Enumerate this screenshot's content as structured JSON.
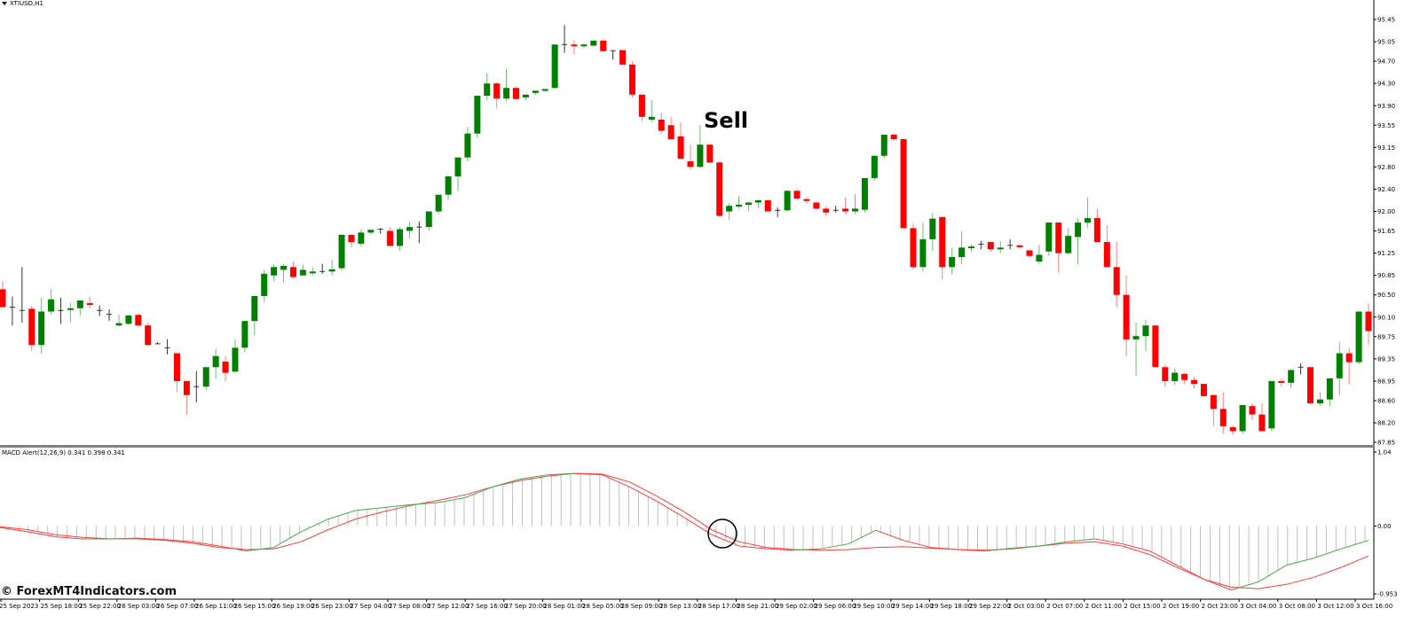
{
  "window": {
    "symbol_label": "XTIUSD,H1",
    "menu_icon": "triangle-down-icon"
  },
  "annotation": {
    "sell_label": "Sell",
    "crossover_marker": "circle"
  },
  "indicator": {
    "label": "MACD Alert(12,26,9) 0.341 0.398 0.341",
    "name": "MACD Alert",
    "params": "12,26,9",
    "values": [
      0.341,
      0.398,
      0.341
    ],
    "scale_max_label": "1.04",
    "scale_zero_label": "0.00",
    "scale_min_label": "-0.953"
  },
  "watermark": "© ForexMT4Indicators.com",
  "colors": {
    "bull": "#008000",
    "bear": "#ff0000",
    "bull_wick": "#6fbf6f",
    "bear_wick": "#ff8080",
    "macd_up": "#4aa84a",
    "macd_signal": "#ff3b3b",
    "histogram": "#c0c0c0",
    "axis": "#000000",
    "separator": "#808080"
  },
  "chart_data": [
    {
      "type": "candlestick",
      "title": "XTIUSD,H1",
      "xlabel": "",
      "ylabel": "",
      "ylim": [
        87.85,
        95.45
      ],
      "y_ticks": [
        "95.45",
        "95.05",
        "94.70",
        "94.30",
        "93.90",
        "93.55",
        "93.15",
        "92.80",
        "92.40",
        "92.00",
        "91.65",
        "91.25",
        "90.85",
        "90.50",
        "90.10",
        "89.75",
        "89.35",
        "88.95",
        "88.60",
        "88.20",
        "87.85"
      ],
      "x_ticks": [
        "25 Sep 2023",
        "25 Sep 18:00",
        "25 Sep 22:00",
        "26 Sep 03:00",
        "26 Sep 07:00",
        "26 Sep 11:00",
        "26 Sep 15:00",
        "26 Sep 19:00",
        "26 Sep 23:00",
        "27 Sep 04:00",
        "27 Sep 08:00",
        "27 Sep 12:00",
        "27 Sep 16:00",
        "27 Sep 20:00",
        "28 Sep 01:00",
        "28 Sep 05:00",
        "28 Sep 09:00",
        "28 Sep 13:00",
        "28 Sep 17:00",
        "28 Sep 21:00",
        "29 Sep 02:00",
        "29 Sep 06:00",
        "29 Sep 10:00",
        "29 Sep 14:00",
        "29 Sep 18:00",
        "29 Sep 22:00",
        "2 Oct 03:00",
        "2 Oct 07:00",
        "2 Oct 11:00",
        "2 Oct 15:00",
        "2 Oct 19:00",
        "2 Oct 23:00",
        "3 Oct 04:00",
        "3 Oct 08:00",
        "3 Oct 12:00",
        "3 Oct 16:00"
      ],
      "annotations": [
        {
          "text": "Sell",
          "near": "28 Sep 17:00"
        }
      ],
      "candles_ohlc": [
        [
          90.6,
          90.75,
          90.28,
          90.28
        ],
        [
          90.27,
          90.47,
          89.95,
          90.28
        ],
        [
          90.22,
          91.0,
          90.0,
          90.22
        ],
        [
          90.25,
          90.3,
          89.5,
          89.6
        ],
        [
          89.6,
          90.45,
          89.45,
          90.2
        ],
        [
          90.2,
          90.6,
          90.15,
          90.42
        ],
        [
          90.22,
          90.45,
          89.98,
          90.22
        ],
        [
          90.23,
          90.36,
          90.0,
          90.26
        ],
        [
          90.26,
          90.4,
          90.13,
          90.4
        ],
        [
          90.35,
          90.47,
          90.26,
          90.32
        ],
        [
          90.22,
          90.31,
          90.12,
          90.22
        ],
        [
          90.15,
          90.24,
          90.03,
          90.15
        ],
        [
          89.95,
          90.14,
          89.93,
          89.99
        ],
        [
          89.98,
          90.14,
          89.97,
          90.13
        ],
        [
          90.14,
          90.17,
          89.95,
          89.95
        ],
        [
          89.95,
          90.0,
          89.6,
          89.6
        ],
        [
          89.62,
          89.65,
          89.62,
          89.62
        ],
        [
          89.55,
          89.7,
          89.43,
          89.55
        ],
        [
          89.45,
          89.45,
          88.75,
          88.95
        ],
        [
          88.95,
          88.95,
          88.35,
          88.7
        ],
        [
          88.85,
          89.13,
          88.57,
          88.85
        ],
        [
          88.85,
          89.2,
          88.8,
          89.2
        ],
        [
          89.2,
          89.53,
          88.99,
          89.4
        ],
        [
          89.3,
          89.4,
          88.95,
          89.1
        ],
        [
          89.12,
          89.7,
          89.1,
          89.55
        ],
        [
          89.55,
          89.88,
          89.47,
          90.03
        ],
        [
          90.03,
          90.4,
          89.77,
          90.48
        ],
        [
          90.48,
          90.95,
          90.37,
          90.88
        ],
        [
          90.85,
          91.05,
          90.75,
          91.0
        ],
        [
          90.95,
          91.05,
          90.73,
          91.02
        ],
        [
          91.0,
          91.1,
          90.8,
          90.82
        ],
        [
          90.85,
          91.05,
          90.85,
          90.95
        ],
        [
          90.9,
          91.0,
          90.85,
          90.92
        ],
        [
          90.92,
          91.06,
          90.88,
          90.92
        ],
        [
          90.92,
          91.13,
          90.85,
          90.96
        ],
        [
          90.98,
          91.58,
          90.93,
          91.58
        ],
        [
          91.58,
          91.58,
          91.35,
          91.45
        ],
        [
          91.42,
          91.68,
          91.37,
          91.62
        ],
        [
          91.62,
          91.67,
          91.59,
          91.67
        ],
        [
          91.68,
          91.7,
          91.6,
          91.67
        ],
        [
          91.65,
          91.72,
          91.38,
          91.38
        ],
        [
          91.38,
          91.72,
          91.3,
          91.68
        ],
        [
          91.65,
          91.82,
          91.52,
          91.72
        ],
        [
          91.72,
          91.82,
          91.43,
          91.72
        ],
        [
          91.72,
          91.94,
          91.65,
          92.0
        ],
        [
          92.0,
          92.25,
          91.95,
          92.3
        ],
        [
          92.3,
          92.65,
          92.2,
          92.63
        ],
        [
          92.63,
          92.85,
          92.37,
          92.97
        ],
        [
          92.97,
          93.52,
          92.9,
          93.4
        ],
        [
          93.4,
          93.85,
          93.32,
          94.08
        ],
        [
          94.08,
          94.49,
          94.0,
          94.3
        ],
        [
          94.3,
          94.32,
          93.85,
          94.03
        ],
        [
          94.03,
          94.56,
          93.98,
          94.22
        ],
        [
          94.22,
          94.25,
          94.0,
          94.02
        ],
        [
          94.05,
          94.1,
          94.0,
          94.1
        ],
        [
          94.13,
          94.17,
          94.09,
          94.17
        ],
        [
          94.18,
          94.2,
          94.15,
          94.2
        ],
        [
          94.22,
          95.0,
          94.2,
          95.0
        ],
        [
          95.0,
          95.35,
          94.85,
          95.0
        ],
        [
          95.0,
          95.08,
          94.82,
          94.98
        ],
        [
          94.98,
          95.02,
          94.93,
          95.0
        ],
        [
          94.98,
          95.07,
          94.97,
          95.07
        ],
        [
          95.07,
          95.08,
          94.95,
          94.88
        ],
        [
          94.88,
          94.89,
          94.73,
          94.89
        ],
        [
          94.9,
          94.9,
          94.66,
          94.64
        ],
        [
          94.64,
          94.7,
          94.05,
          94.1
        ],
        [
          94.1,
          94.1,
          93.62,
          93.7
        ],
        [
          93.65,
          94.0,
          93.6,
          93.7
        ],
        [
          93.65,
          93.78,
          93.4,
          93.45
        ],
        [
          93.55,
          93.7,
          93.3,
          93.3
        ],
        [
          93.35,
          93.6,
          92.95,
          92.95
        ],
        [
          92.9,
          93.2,
          92.75,
          92.8
        ],
        [
          92.8,
          93.55,
          92.78,
          93.2
        ],
        [
          93.2,
          93.22,
          92.88,
          92.88
        ],
        [
          92.88,
          92.9,
          91.9,
          91.92
        ],
        [
          92.0,
          92.15,
          91.85,
          92.1
        ],
        [
          92.1,
          92.27,
          92.05,
          92.12
        ],
        [
          92.12,
          92.17,
          92.0,
          92.16
        ],
        [
          92.16,
          92.22,
          92.06,
          92.2
        ],
        [
          92.2,
          92.2,
          92.0,
          92.0
        ],
        [
          92.02,
          92.07,
          91.9,
          92.02
        ],
        [
          92.02,
          92.38,
          91.99,
          92.37
        ],
        [
          92.37,
          92.4,
          92.2,
          92.23
        ],
        [
          92.22,
          92.25,
          92.15,
          92.2
        ],
        [
          92.16,
          92.16,
          92.03,
          92.05
        ],
        [
          92.05,
          92.1,
          91.92,
          91.98
        ],
        [
          92.02,
          92.1,
          91.98,
          92.02
        ],
        [
          92.05,
          92.25,
          91.95,
          92.0
        ],
        [
          92.0,
          92.31,
          91.95,
          92.05
        ],
        [
          92.03,
          92.6,
          91.98,
          92.6
        ],
        [
          92.6,
          92.85,
          92.55,
          93.0
        ],
        [
          93.0,
          93.35,
          92.95,
          93.38
        ],
        [
          93.38,
          93.4,
          93.28,
          93.3
        ],
        [
          93.3,
          93.3,
          92.15,
          91.7
        ],
        [
          91.7,
          91.78,
          90.95,
          91.0
        ],
        [
          91.0,
          91.8,
          90.92,
          91.5
        ],
        [
          91.5,
          91.97,
          91.29,
          91.87
        ],
        [
          91.9,
          91.9,
          90.78,
          91.0
        ],
        [
          91.0,
          91.35,
          90.87,
          91.18
        ],
        [
          91.18,
          91.65,
          91.05,
          91.35
        ],
        [
          91.35,
          91.41,
          91.28,
          91.37
        ],
        [
          91.41,
          91.47,
          91.32,
          91.41
        ],
        [
          91.45,
          91.45,
          91.28,
          91.32
        ],
        [
          91.32,
          91.47,
          91.25,
          91.35
        ],
        [
          91.38,
          91.5,
          91.32,
          91.39
        ],
        [
          91.39,
          91.41,
          91.33,
          91.36
        ],
        [
          91.3,
          91.3,
          91.17,
          91.2
        ],
        [
          91.1,
          91.4,
          91.05,
          91.22
        ],
        [
          91.28,
          91.8,
          91.2,
          91.8
        ],
        [
          91.8,
          91.8,
          90.9,
          91.25
        ],
        [
          91.25,
          91.7,
          91.22,
          91.56
        ],
        [
          91.54,
          91.88,
          91.05,
          91.8
        ],
        [
          91.8,
          92.25,
          91.7,
          91.88
        ],
        [
          91.88,
          92.05,
          91.75,
          91.45
        ],
        [
          91.45,
          91.75,
          91.2,
          91.0
        ],
        [
          91.0,
          91.45,
          90.28,
          90.5
        ],
        [
          90.5,
          90.85,
          89.4,
          89.7
        ],
        [
          89.7,
          90.0,
          89.05,
          89.76
        ],
        [
          89.76,
          90.05,
          89.49,
          89.95
        ],
        [
          89.95,
          89.95,
          89.27,
          89.2
        ],
        [
          89.2,
          89.23,
          88.85,
          88.95
        ],
        [
          88.95,
          89.18,
          88.88,
          89.1
        ],
        [
          89.08,
          89.1,
          88.9,
          88.97
        ],
        [
          88.97,
          89.03,
          88.82,
          88.9
        ],
        [
          88.9,
          88.9,
          88.7,
          88.68
        ],
        [
          88.7,
          88.7,
          88.14,
          88.45
        ],
        [
          88.45,
          88.75,
          88.0,
          88.14
        ],
        [
          88.12,
          88.15,
          87.98,
          88.05
        ],
        [
          88.05,
          88.52,
          88.0,
          88.52
        ],
        [
          88.5,
          88.55,
          88.25,
          88.35
        ],
        [
          88.35,
          88.55,
          88.22,
          88.05
        ],
        [
          88.1,
          88.95,
          88.05,
          88.95
        ],
        [
          88.95,
          89.0,
          88.85,
          88.92
        ],
        [
          88.92,
          89.15,
          88.82,
          89.15
        ],
        [
          89.2,
          89.27,
          89.07,
          89.2
        ],
        [
          89.2,
          89.2,
          88.55,
          88.55
        ],
        [
          88.55,
          88.75,
          88.5,
          88.62
        ],
        [
          88.62,
          89.0,
          88.5,
          89.0
        ],
        [
          89.0,
          89.65,
          88.7,
          89.45
        ],
        [
          89.45,
          89.55,
          88.9,
          89.29
        ],
        [
          89.29,
          90.2,
          89.25,
          90.2
        ],
        [
          90.2,
          90.35,
          89.6,
          89.85
        ]
      ]
    },
    {
      "type": "line",
      "title": "MACD Alert(12,26,9)",
      "ylim": [
        -0.953,
        1.04
      ],
      "y_ticks": [
        "1.04",
        "0.00",
        "-0.953"
      ],
      "series": [
        {
          "name": "MACD (rising segments green / falling red)",
          "values_approx": [
            -0.02,
            -0.08,
            -0.15,
            -0.18,
            -0.18,
            -0.17,
            -0.19,
            -0.22,
            -0.28,
            -0.35,
            -0.3,
            -0.08,
            0.1,
            0.22,
            0.26,
            0.3,
            0.33,
            0.4,
            0.55,
            0.66,
            0.72,
            0.74,
            0.72,
            0.55,
            0.35,
            0.12,
            -0.12,
            -0.28,
            -0.32,
            -0.34,
            -0.32,
            -0.25,
            -0.06,
            -0.2,
            -0.3,
            -0.33,
            -0.35,
            -0.31,
            -0.28,
            -0.22,
            -0.18,
            -0.25,
            -0.35,
            -0.55,
            -0.75,
            -0.9,
            -0.78,
            -0.55,
            -0.45,
            -0.32,
            -0.2
          ]
        },
        {
          "name": "Signal",
          "values_approx": [
            -0.01,
            -0.05,
            -0.12,
            -0.16,
            -0.18,
            -0.18,
            -0.2,
            -0.24,
            -0.3,
            -0.33,
            -0.32,
            -0.22,
            -0.05,
            0.1,
            0.2,
            0.29,
            0.36,
            0.44,
            0.55,
            0.64,
            0.7,
            0.74,
            0.73,
            0.62,
            0.42,
            0.2,
            -0.05,
            -0.22,
            -0.3,
            -0.33,
            -0.34,
            -0.33,
            -0.3,
            -0.29,
            -0.31,
            -0.33,
            -0.34,
            -0.32,
            -0.28,
            -0.24,
            -0.22,
            -0.28,
            -0.4,
            -0.58,
            -0.75,
            -0.86,
            -0.88,
            -0.82,
            -0.72,
            -0.58,
            -0.42
          ]
        }
      ],
      "annotations": [
        {
          "type": "circle",
          "note": "bearish crossover near 28 Sep 17:00"
        }
      ]
    }
  ]
}
